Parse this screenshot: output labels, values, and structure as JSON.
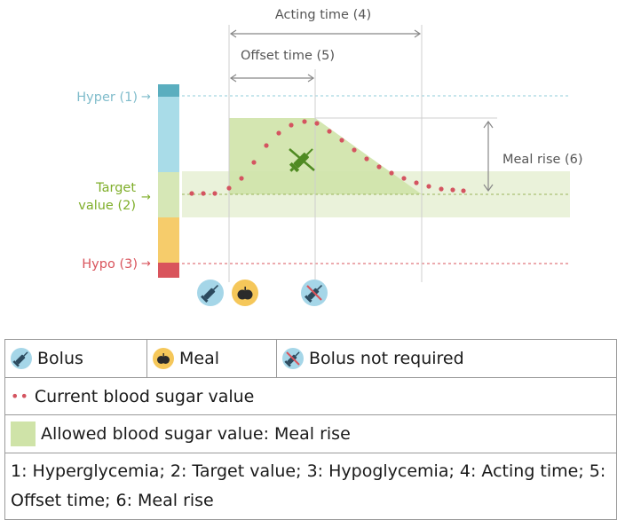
{
  "labels": {
    "acting_time": "Acting time (4)",
    "offset_time": "Offset time (5)",
    "hyper": "Hyper (1)",
    "target_line1": "Target",
    "target_line2": "value (2)",
    "hypo": "Hypo (3)",
    "meal_rise": "Meal rise (6)"
  },
  "colors": {
    "hyper": "#8fcdd9",
    "target": "#7fae2a",
    "hypo": "#d9545c",
    "allowed_area": "#cfe3a8",
    "dots": "#d45460",
    "bolus_icon_bg": "#9fd3e6",
    "meal_icon_bg": "#f5c75a"
  },
  "icons": [
    "syringe-icon",
    "apple-icon",
    "syringe-crossed-icon"
  ],
  "legend": {
    "bolus": "Bolus",
    "meal": "Meal",
    "bolus_not_required": "Bolus not required",
    "current_value": "Current blood sugar value",
    "allowed_value": "Allowed blood sugar value: Meal rise",
    "footnote": "1: Hyperglycemia; 2: Target value; 3: Hypoglycemia; 4: Acting time; 5: Offset time; 6: Meal rise"
  }
}
